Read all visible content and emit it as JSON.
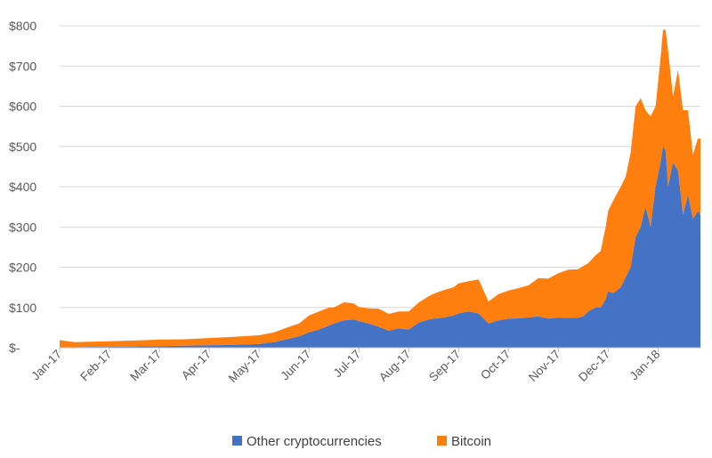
{
  "chart_data": {
    "type": "area",
    "stacked": true,
    "title": "",
    "xlabel": "",
    "ylabel": "",
    "ylim": [
      0,
      800
    ],
    "y_ticks": [
      {
        "value": 0,
        "label": "$-"
      },
      {
        "value": 100,
        "label": "$100"
      },
      {
        "value": 200,
        "label": "$200"
      },
      {
        "value": 300,
        "label": "$300"
      },
      {
        "value": 400,
        "label": "$400"
      },
      {
        "value": 500,
        "label": "$500"
      },
      {
        "value": 600,
        "label": "$600"
      },
      {
        "value": 700,
        "label": "$700"
      },
      {
        "value": 800,
        "label": "$800"
      }
    ],
    "x_ticks": [
      "Jan-17",
      "Feb-17",
      "Mar-17",
      "Apr-17",
      "May-17",
      "Jun-17",
      "Jul-17",
      "Aug-17",
      "Sep-17",
      "Oct-17",
      "Nov-17",
      "Dec-17",
      "Jan-18"
    ],
    "x_range_months": [
      0,
      12.85
    ],
    "grid": true,
    "legend_position": "bottom",
    "x": [
      0,
      0.3,
      0.6,
      1.0,
      1.5,
      2.0,
      2.5,
      3.0,
      3.5,
      4.0,
      4.3,
      4.6,
      4.8,
      5.0,
      5.2,
      5.4,
      5.5,
      5.7,
      5.9,
      6.0,
      6.2,
      6.4,
      6.6,
      6.8,
      7.0,
      7.2,
      7.4,
      7.5,
      7.7,
      7.9,
      8.0,
      8.2,
      8.4,
      8.6,
      8.8,
      9.0,
      9.2,
      9.4,
      9.6,
      9.8,
      10.0,
      10.2,
      10.4,
      10.5,
      10.6,
      10.75,
      10.85,
      10.95,
      11.0,
      11.1,
      11.25,
      11.35,
      11.45,
      11.55,
      11.65,
      11.75,
      11.85,
      11.95,
      12.05,
      12.1,
      12.15,
      12.2,
      12.3,
      12.4,
      12.5,
      12.6,
      12.7,
      12.8,
      12.85
    ],
    "series": [
      {
        "name": "Other cryptocurrencies",
        "color": "#4472c4",
        "values": [
          1,
          1,
          2,
          2,
          3,
          4,
          5,
          6,
          7,
          9,
          14,
          22,
          28,
          38,
          45,
          55,
          60,
          68,
          70,
          66,
          60,
          52,
          42,
          48,
          45,
          62,
          70,
          72,
          75,
          80,
          85,
          90,
          85,
          60,
          68,
          72,
          73,
          75,
          78,
          72,
          75,
          74,
          75,
          78,
          90,
          100,
          100,
          120,
          140,
          135,
          150,
          175,
          200,
          275,
          300,
          350,
          300,
          400,
          460,
          500,
          490,
          400,
          460,
          440,
          330,
          380,
          320,
          340,
          330
        ]
      },
      {
        "name": "Bitcoin",
        "color": "#ff7f0e",
        "values": [
          18,
          13,
          13,
          14,
          15,
          16,
          16,
          18,
          20,
          22,
          24,
          30,
          32,
          42,
          45,
          45,
          40,
          45,
          40,
          35,
          38,
          45,
          42,
          42,
          45,
          50,
          58,
          62,
          68,
          70,
          75,
          75,
          85,
          55,
          65,
          70,
          75,
          80,
          95,
          100,
          110,
          120,
          120,
          125,
          120,
          130,
          140,
          180,
          200,
          230,
          250,
          250,
          285,
          325,
          320,
          240,
          275,
          200,
          260,
          290,
          300,
          340,
          165,
          250,
          260,
          210,
          160,
          180,
          190
        ]
      }
    ],
    "legend": [
      "Other cryptocurrencies",
      "Bitcoin"
    ]
  }
}
